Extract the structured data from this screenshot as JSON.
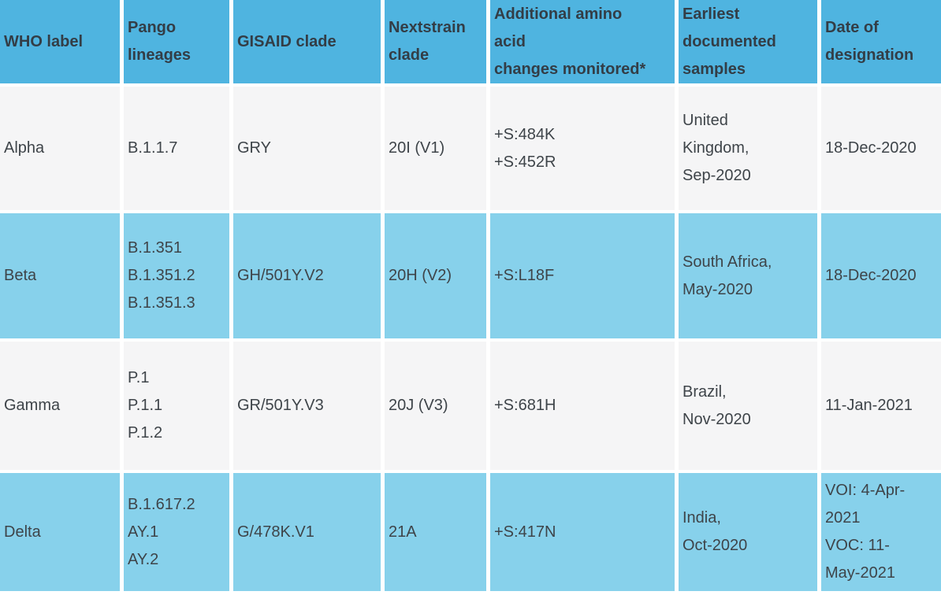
{
  "chart_data": {
    "type": "table",
    "title": "",
    "columns": [
      "WHO label",
      "Pango lineages",
      "GISAID clade",
      "Nextstrain clade",
      "Additional amino acid changes monitored*",
      "Earliest documented samples",
      "Date of designation"
    ],
    "rows": [
      [
        "Alpha",
        "B.1.1.7",
        "GRY",
        "20I (V1)",
        "+S:484K +S:452R",
        "United Kingdom, Sep-2020",
        "18-Dec-2020"
      ],
      [
        "Beta",
        "B.1.351 B.1.351.2 B.1.351.3",
        "GH/501Y.V2",
        "20H (V2)",
        "+S:L18F",
        "South Africa, May-2020",
        "18-Dec-2020"
      ],
      [
        "Gamma",
        "P.1 P.1.1 P.1.2",
        "GR/501Y.V3",
        "20J (V3)",
        "+S:681H",
        "Brazil, Nov-2020",
        "11-Jan-2021"
      ],
      [
        "Delta",
        "B.1.617.2 AY.1 AY.2",
        "G/478K.V1",
        "21A",
        "+S:417N",
        "India, Oct-2020",
        "VOI: 4-Apr-2021 VOC: 11-May-2021"
      ]
    ]
  },
  "colors": {
    "header_bg": "#4FB4E0",
    "row_blue_bg": "#87D1EB",
    "row_light_bg": "#F5F5F6",
    "separator": "#FFFFFF",
    "header_text": "#333D46",
    "body_text": "#3E4449"
  },
  "table": {
    "header_cells": [
      {
        "id": "who-label",
        "lines": [
          "WHO label"
        ]
      },
      {
        "id": "pango-lineages",
        "lines": [
          "Pango",
          "lineages"
        ]
      },
      {
        "id": "gisaid-clade",
        "lines": [
          "GISAID clade"
        ]
      },
      {
        "id": "nextstrain-clade",
        "lines": [
          "Nextstrain",
          "clade"
        ]
      },
      {
        "id": "amino-acid-changes",
        "lines": [
          "Additional amino",
          "acid",
          "changes monitored*"
        ]
      },
      {
        "id": "earliest-samples",
        "lines": [
          "Earliest",
          "documented",
          "samples"
        ]
      },
      {
        "id": "date-of-designation",
        "lines": [
          "Date of",
          "designation"
        ]
      }
    ],
    "rows": [
      {
        "variant": "alpha",
        "cells": [
          {
            "lines": [
              "Alpha"
            ]
          },
          {
            "lines": [
              "B.1.1.7"
            ]
          },
          {
            "lines": [
              "GRY"
            ]
          },
          {
            "lines": [
              "20I (V1)"
            ]
          },
          {
            "lines": [
              "+S:484K",
              "+S:452R"
            ]
          },
          {
            "lines": [
              "United",
              "Kingdom,",
              "Sep-2020"
            ]
          },
          {
            "lines": [
              "18-Dec-2020"
            ]
          }
        ]
      },
      {
        "variant": "beta",
        "cells": [
          {
            "lines": [
              "Beta"
            ]
          },
          {
            "lines": [
              "B.1.351",
              "B.1.351.2",
              "B.1.351.3"
            ]
          },
          {
            "lines": [
              "GH/501Y.V2"
            ]
          },
          {
            "lines": [
              "20H (V2)"
            ]
          },
          {
            "lines": [
              "+S:L18F"
            ]
          },
          {
            "lines": [
              "South Africa,",
              "May-2020"
            ]
          },
          {
            "lines": [
              "18-Dec-2020"
            ]
          }
        ]
      },
      {
        "variant": "gamma",
        "cells": [
          {
            "lines": [
              "Gamma"
            ]
          },
          {
            "lines": [
              "P.1",
              "P.1.1",
              "P.1.2"
            ]
          },
          {
            "lines": [
              "GR/501Y.V3"
            ]
          },
          {
            "lines": [
              "20J (V3)"
            ]
          },
          {
            "lines": [
              "+S:681H"
            ]
          },
          {
            "lines": [
              "Brazil,",
              "Nov-2020"
            ]
          },
          {
            "lines": [
              "11-Jan-2021"
            ]
          }
        ]
      },
      {
        "variant": "delta",
        "cells": [
          {
            "lines": [
              "Delta"
            ]
          },
          {
            "lines": [
              "B.1.617.2",
              "AY.1",
              "AY.2"
            ]
          },
          {
            "lines": [
              "G/478K.V1"
            ]
          },
          {
            "lines": [
              "21A"
            ]
          },
          {
            "lines": [
              "+S:417N"
            ]
          },
          {
            "lines": [
              "India,",
              "Oct-2020"
            ]
          },
          {
            "lines": [
              "VOI: 4-Apr-",
              "2021",
              "VOC: 11-",
              "May-2021"
            ]
          }
        ]
      }
    ]
  }
}
